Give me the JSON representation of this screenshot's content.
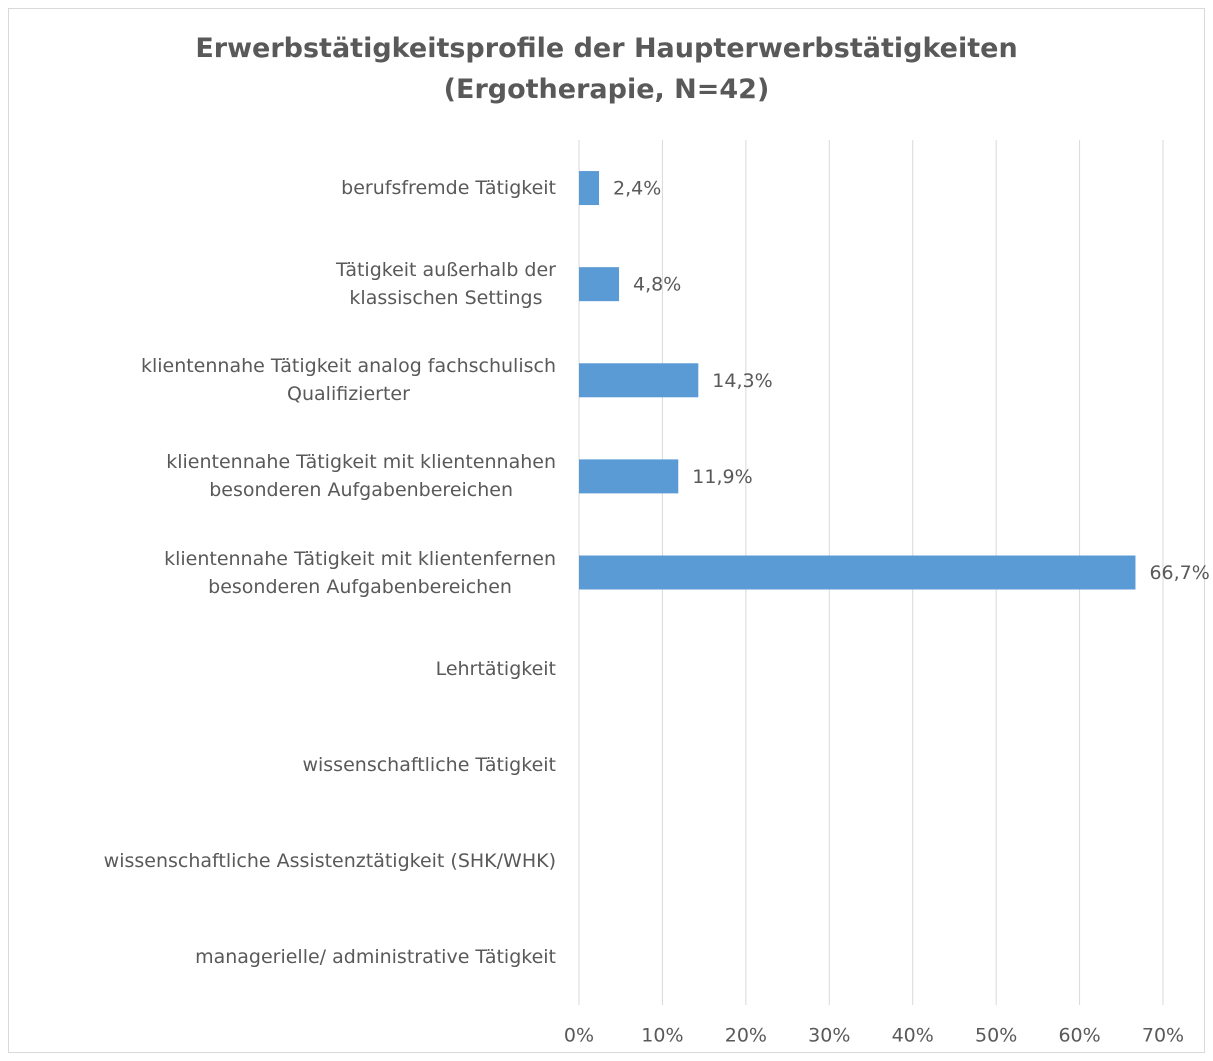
{
  "chart_data": {
    "type": "hbar",
    "title": "Erwerbstätigkeitsprofile der Haupterwerbstätigkeiten\n(Ergotherapie, N=42)",
    "categories": [
      "berufsfremde Tätigkeit",
      "Tätigkeit außerhalb der\nklassischen Settings",
      "klientennahe Tätigkeit analog fachschulisch\nQualifizierter",
      "klientennahe Tätigkeit mit klientennahen\nbesonderen Aufgabenbereichen",
      "klientennahe Tätigkeit mit klientenfernen\nbesonderen Aufgabenbereichen",
      "Lehrtätigkeit",
      "wissenschaftliche Tätigkeit",
      "wissenschaftliche Assistenztätigkeit (SHK/WHK)",
      "managerielle/ administrative Tätigkeit"
    ],
    "values": [
      2.4,
      4.8,
      14.3,
      11.9,
      66.7,
      null,
      null,
      null,
      null
    ],
    "value_labels": [
      "2,4%",
      "4,8%",
      "14,3%",
      "11,9%",
      "66,7%",
      null,
      null,
      null,
      null
    ],
    "color": "#5b9bd5",
    "xlim": [
      0,
      70
    ],
    "xticks": [
      {
        "value": 0,
        "label": "0%"
      },
      {
        "value": 10,
        "label": "10%"
      },
      {
        "value": 20,
        "label": "20%"
      },
      {
        "value": 30,
        "label": "30%"
      },
      {
        "value": 40,
        "label": "40%"
      },
      {
        "value": 50,
        "label": "50%"
      },
      {
        "value": 60,
        "label": "60%"
      },
      {
        "value": 70,
        "label": "70%"
      }
    ],
    "grid": true
  }
}
